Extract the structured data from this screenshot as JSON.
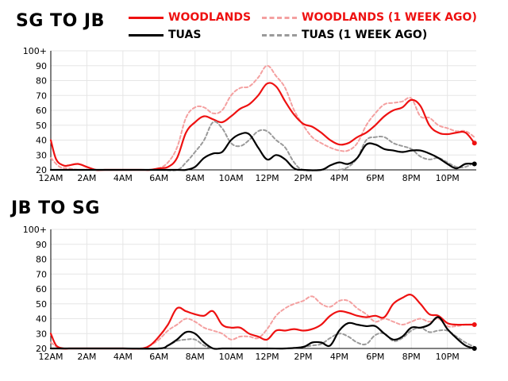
{
  "colors": {
    "woodlands": "#ee1111",
    "woodlands_prev": "#f4a0a0",
    "tuas": "#000000",
    "tuas_prev": "#9a9a9a",
    "grid": "#e6e6e6"
  },
  "legend": [
    {
      "name": "WOODLANDS",
      "style": "solid",
      "color_key": "woodlands"
    },
    {
      "name": "WOODLANDS (1 WEEK AGO)",
      "style": "dashed",
      "color_key": "woodlands_prev"
    },
    {
      "name": "TUAS",
      "style": "solid",
      "color_key": "tuas"
    },
    {
      "name": "TUAS (1 WEEK AGO)",
      "style": "dashed",
      "color_key": "tuas_prev"
    }
  ],
  "chart_data": [
    {
      "type": "line",
      "title": "SG TO JB",
      "x_unit": "hour of day",
      "xlim": [
        0,
        23.6
      ],
      "ylim": [
        20,
        100
      ],
      "x_ticks": [
        0,
        2,
        4,
        6,
        8,
        10,
        12,
        14,
        16,
        18,
        20,
        22
      ],
      "x_tick_labels": [
        "12AM",
        "2AM",
        "4AM",
        "6AM",
        "8AM",
        "10AM",
        "12PM",
        "2PM",
        "4PM",
        "6PM",
        "8PM",
        "10PM"
      ],
      "y_ticks": [
        20,
        30,
        40,
        50,
        60,
        70,
        80,
        90,
        100
      ],
      "y_tick_labels": [
        "20",
        "30",
        "40",
        "50",
        "60",
        "70",
        "80",
        "90",
        "100+"
      ],
      "grid": true,
      "series": [
        {
          "name": "WOODLANDS (1 WEEK AGO)",
          "color_key": "woodlands_prev",
          "dashed": true,
          "end_dot": false,
          "x": [
            0,
            0.5,
            1,
            1.5,
            2,
            3,
            4,
            5,
            5.5,
            6,
            6.5,
            7,
            7.5,
            8,
            8.5,
            9,
            9.5,
            10,
            10.5,
            11,
            11.5,
            12,
            12.5,
            13,
            13.5,
            14,
            14.5,
            15,
            15.5,
            16,
            16.5,
            17,
            17.5,
            18,
            18.5,
            19,
            19.5,
            20,
            20.5,
            21,
            21.5,
            22,
            22.5,
            23,
            23.5
          ],
          "y": [
            28,
            22,
            21,
            20,
            20,
            20,
            20,
            20,
            20,
            21,
            25,
            35,
            55,
            62,
            62,
            58,
            60,
            70,
            75,
            76,
            82,
            90,
            83,
            75,
            60,
            50,
            42,
            38,
            35,
            33,
            33,
            38,
            50,
            58,
            64,
            65,
            66,
            68,
            56,
            55,
            50,
            48,
            46,
            46,
            42
          ]
        },
        {
          "name": "WOODLANDS",
          "color_key": "woodlands",
          "dashed": false,
          "end_dot": true,
          "x": [
            0,
            0.3,
            0.7,
            1,
            1.5,
            2,
            2.5,
            3,
            4,
            5,
            5.5,
            6,
            6.5,
            7,
            7.5,
            8,
            8.5,
            9,
            9.5,
            10,
            10.5,
            11,
            11.5,
            12,
            12.5,
            13,
            13.5,
            14,
            14.5,
            15,
            15.5,
            16,
            16.5,
            17,
            17.5,
            18,
            18.5,
            19,
            19.5,
            20,
            20.5,
            21,
            21.5,
            22,
            22.5,
            23,
            23.5
          ],
          "y": [
            40,
            27,
            23,
            23,
            24,
            22,
            20,
            20,
            20,
            20,
            20,
            21,
            22,
            28,
            45,
            52,
            56,
            54,
            52,
            56,
            61,
            64,
            70,
            78,
            76,
            66,
            57,
            51,
            49,
            45,
            40,
            37,
            38,
            42,
            45,
            50,
            56,
            60,
            62,
            67,
            63,
            50,
            45,
            44,
            45,
            45,
            38
          ]
        },
        {
          "name": "TUAS (1 WEEK AGO)",
          "color_key": "tuas_prev",
          "dashed": true,
          "end_dot": false,
          "x": [
            0,
            2,
            4,
            6,
            7,
            7.5,
            8,
            8.5,
            9,
            9.5,
            10,
            10.5,
            11,
            11.5,
            12,
            12.5,
            13,
            13.5,
            14,
            15,
            15.5,
            16,
            16.5,
            17,
            17.5,
            18,
            18.5,
            19,
            19.5,
            20,
            20.5,
            21,
            21.5,
            22,
            22.5,
            23,
            23.5
          ],
          "y": [
            20,
            20,
            20,
            20,
            20,
            25,
            32,
            40,
            52,
            48,
            38,
            36,
            40,
            46,
            46,
            40,
            35,
            25,
            20,
            20,
            20,
            20,
            22,
            28,
            40,
            42,
            42,
            38,
            36,
            34,
            29,
            27,
            28,
            25,
            22,
            22,
            25
          ]
        },
        {
          "name": "TUAS",
          "color_key": "tuas",
          "dashed": false,
          "end_dot": true,
          "x": [
            0,
            2,
            4,
            6,
            7,
            7.5,
            8,
            8.5,
            9,
            9.5,
            10,
            10.5,
            11,
            11.5,
            12,
            12.5,
            13,
            13.5,
            14,
            15,
            15.5,
            16,
            16.5,
            17,
            17.5,
            18,
            18.5,
            19,
            19.5,
            20,
            20.5,
            21,
            21.5,
            22,
            22.5,
            23,
            23.5
          ],
          "y": [
            20,
            20,
            20,
            20,
            20,
            20,
            22,
            28,
            31,
            32,
            40,
            44,
            44,
            35,
            27,
            30,
            27,
            21,
            20,
            20,
            23,
            25,
            24,
            28,
            37,
            37,
            34,
            33,
            32,
            33,
            33,
            31,
            28,
            24,
            21,
            24,
            24
          ]
        }
      ]
    },
    {
      "type": "line",
      "title": "JB TO SG",
      "x_unit": "hour of day",
      "xlim": [
        0,
        23.6
      ],
      "ylim": [
        20,
        100
      ],
      "x_ticks": [
        0,
        2,
        4,
        6,
        8,
        10,
        12,
        14,
        16,
        18,
        20,
        22
      ],
      "x_tick_labels": [
        "12AM",
        "2AM",
        "4AM",
        "6AM",
        "8AM",
        "10AM",
        "12PM",
        "2PM",
        "4PM",
        "6PM",
        "8PM",
        "10PM"
      ],
      "y_ticks": [
        20,
        30,
        40,
        50,
        60,
        70,
        80,
        90,
        100
      ],
      "y_tick_labels": [
        "20",
        "30",
        "40",
        "50",
        "60",
        "70",
        "80",
        "90",
        "100+"
      ],
      "grid": true,
      "series": [
        {
          "name": "WOODLANDS (1 WEEK AGO)",
          "color_key": "woodlands_prev",
          "dashed": true,
          "end_dot": false,
          "x": [
            0,
            0.5,
            1,
            2,
            3,
            4,
            5,
            5.5,
            6,
            6.5,
            7,
            7.5,
            8,
            8.5,
            9,
            9.5,
            10,
            10.5,
            11,
            11.5,
            12,
            12.5,
            13,
            13.5,
            14,
            14.5,
            15,
            15.5,
            16,
            16.5,
            17,
            17.5,
            18,
            18.5,
            19,
            19.5,
            20,
            20.5,
            21,
            21.5,
            22,
            22.5,
            23,
            23.5
          ],
          "y": [
            24,
            20,
            20,
            20,
            20,
            20,
            20,
            22,
            26,
            32,
            36,
            40,
            38,
            34,
            32,
            30,
            26,
            28,
            28,
            27,
            33,
            42,
            47,
            50,
            52,
            55,
            50,
            48,
            52,
            52,
            47,
            43,
            38,
            40,
            38,
            36,
            38,
            40,
            38,
            40,
            35,
            35,
            36,
            36
          ]
        },
        {
          "name": "WOODLANDS",
          "color_key": "woodlands",
          "dashed": false,
          "end_dot": true,
          "x": [
            0,
            0.3,
            0.7,
            1,
            2,
            3,
            4,
            5,
            5.5,
            6,
            6.5,
            7,
            7.5,
            8,
            8.5,
            9,
            9.5,
            10,
            10.5,
            11,
            11.5,
            12,
            12.5,
            13,
            13.5,
            14,
            14.5,
            15,
            15.5,
            16,
            16.5,
            17,
            17.5,
            18,
            18.5,
            19,
            19.5,
            20,
            20.5,
            21,
            21.5,
            22,
            22.5,
            23,
            23.5
          ],
          "y": [
            30,
            22,
            20,
            20,
            20,
            20,
            20,
            20,
            22,
            28,
            36,
            47,
            45,
            43,
            42,
            45,
            36,
            34,
            34,
            30,
            28,
            26,
            32,
            32,
            33,
            32,
            33,
            36,
            42,
            45,
            44,
            42,
            41,
            42,
            41,
            50,
            54,
            56,
            50,
            43,
            42,
            37,
            36,
            36,
            36
          ]
        },
        {
          "name": "TUAS (1 WEEK AGO)",
          "color_key": "tuas_prev",
          "dashed": true,
          "end_dot": false,
          "x": [
            0,
            2,
            4,
            6,
            6.5,
            7,
            7.5,
            8,
            8.5,
            9,
            9.5,
            10,
            12,
            13,
            14,
            14.5,
            15,
            15.5,
            16,
            16.5,
            17,
            17.5,
            18,
            18.5,
            19,
            19.5,
            20,
            20.5,
            21,
            21.5,
            22,
            22.5,
            23,
            23.5
          ],
          "y": [
            20,
            20,
            20,
            20,
            22,
            25,
            26,
            26,
            22,
            20,
            20,
            20,
            20,
            20,
            21,
            22,
            23,
            27,
            30,
            28,
            24,
            23,
            29,
            30,
            25,
            27,
            32,
            34,
            31,
            32,
            32,
            28,
            24,
            21
          ]
        },
        {
          "name": "TUAS",
          "color_key": "tuas",
          "dashed": false,
          "end_dot": true,
          "x": [
            0,
            2,
            4,
            6,
            6.5,
            7,
            7.5,
            8,
            8.5,
            9,
            9.5,
            10,
            12,
            13,
            14,
            14.5,
            15,
            15.5,
            16,
            16.5,
            17,
            17.5,
            18,
            18.5,
            19,
            19.5,
            20,
            20.5,
            21,
            21.5,
            22,
            22.5,
            23,
            23.5
          ],
          "y": [
            20,
            20,
            20,
            20,
            22,
            26,
            31,
            30,
            24,
            20,
            20,
            20,
            20,
            20,
            21,
            24,
            24,
            22,
            32,
            37,
            36,
            35,
            35,
            30,
            26,
            28,
            34,
            34,
            36,
            41,
            33,
            27,
            22,
            20
          ]
        }
      ]
    }
  ]
}
